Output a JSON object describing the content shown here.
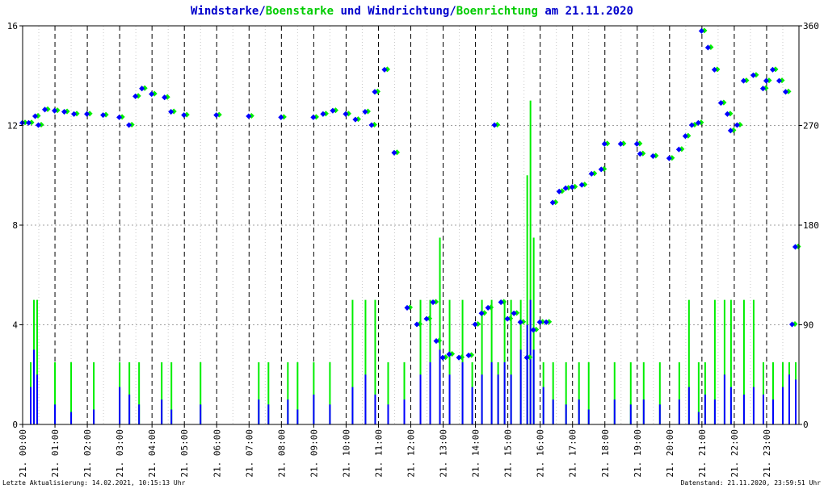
{
  "chart_data": {
    "type": "line",
    "title": {
      "wind_speed": "Windstarke",
      "slash": "/",
      "gust_speed": "Boenstarke",
      "und": " und ",
      "wind_direction": "Windrichtung",
      "gust_direction": "Boenrichtung",
      "date_suffix": " am 21.11.2020"
    },
    "colors": {
      "wind": "#0000ff",
      "gust": "#00ee00",
      "grid": "#a0a0a0",
      "axis": "#000000"
    },
    "y_left": {
      "range": [
        0,
        16
      ],
      "ticks": [
        "0",
        "4",
        "8",
        "12",
        "16"
      ]
    },
    "y_right": {
      "range": [
        0,
        360
      ],
      "ticks": [
        "0",
        "90",
        "180",
        "270",
        "360"
      ]
    },
    "x": {
      "range_hours": [
        0,
        24
      ],
      "ticks": [
        "21. 00:00",
        "21. 01:00",
        "21. 02:00",
        "21. 03:00",
        "21. 04:00",
        "21. 05:00",
        "21. 06:00",
        "21. 07:00",
        "21. 08:00",
        "21. 09:00",
        "21. 10:00",
        "21. 11:00",
        "21. 12:00",
        "21. 13:00",
        "21. 14:00",
        "21. 15:00",
        "21. 16:00",
        "21. 17:00",
        "21. 18:00",
        "21. 19:00",
        "21. 20:00",
        "21. 21:00",
        "21. 22:00",
        "21. 23:00"
      ]
    },
    "direction_series": {
      "name_wind": "Windrichtung",
      "name_gust": "Boenrichtung",
      "points": [
        [
          0.0,
          272
        ],
        [
          0.2,
          272
        ],
        [
          0.4,
          278
        ],
        [
          0.5,
          270
        ],
        [
          0.7,
          284
        ],
        [
          1.0,
          283
        ],
        [
          1.3,
          282
        ],
        [
          1.6,
          280
        ],
        [
          2.0,
          280
        ],
        [
          2.5,
          279
        ],
        [
          3.0,
          277
        ],
        [
          3.3,
          270
        ],
        [
          3.5,
          296
        ],
        [
          3.7,
          303
        ],
        [
          4.0,
          298
        ],
        [
          4.4,
          295
        ],
        [
          4.6,
          282
        ],
        [
          5.0,
          279
        ],
        [
          6.0,
          279
        ],
        [
          7.0,
          278
        ],
        [
          8.0,
          277
        ],
        [
          9.0,
          277
        ],
        [
          9.3,
          280
        ],
        [
          9.6,
          283
        ],
        [
          10.0,
          280
        ],
        [
          10.3,
          275
        ],
        [
          10.6,
          282
        ],
        [
          10.8,
          270
        ],
        [
          10.9,
          300
        ],
        [
          11.2,
          320
        ],
        [
          11.5,
          245
        ],
        [
          11.9,
          105
        ],
        [
          12.2,
          90
        ],
        [
          12.5,
          95
        ],
        [
          12.7,
          110
        ],
        [
          12.8,
          75
        ],
        [
          13.0,
          60
        ],
        [
          13.2,
          63
        ],
        [
          13.5,
          60
        ],
        [
          13.8,
          62
        ],
        [
          14.0,
          90
        ],
        [
          14.2,
          100
        ],
        [
          14.4,
          105
        ],
        [
          14.6,
          270
        ],
        [
          14.8,
          110
        ],
        [
          15.0,
          95
        ],
        [
          15.2,
          100
        ],
        [
          15.4,
          92
        ],
        [
          15.6,
          60
        ],
        [
          15.8,
          85
        ],
        [
          16.0,
          92
        ],
        [
          16.2,
          92
        ],
        [
          16.4,
          200
        ],
        [
          16.6,
          210
        ],
        [
          16.8,
          213
        ],
        [
          17.0,
          214
        ],
        [
          17.3,
          216
        ],
        [
          17.6,
          226
        ],
        [
          17.9,
          230
        ],
        [
          18.0,
          253
        ],
        [
          18.5,
          253
        ],
        [
          19.0,
          253
        ],
        [
          19.1,
          244
        ],
        [
          19.5,
          242
        ],
        [
          20.0,
          240
        ],
        [
          20.3,
          248
        ],
        [
          20.5,
          260
        ],
        [
          20.7,
          270
        ],
        [
          20.9,
          272
        ],
        [
          21.0,
          355
        ],
        [
          21.2,
          340
        ],
        [
          21.4,
          320
        ],
        [
          21.6,
          290
        ],
        [
          21.8,
          280
        ],
        [
          21.9,
          265
        ],
        [
          22.1,
          270
        ],
        [
          22.3,
          310
        ],
        [
          22.6,
          315
        ],
        [
          22.9,
          303
        ],
        [
          23.0,
          310
        ],
        [
          23.2,
          320
        ],
        [
          23.4,
          310
        ],
        [
          23.6,
          300
        ],
        [
          23.8,
          90
        ],
        [
          23.9,
          160
        ]
      ]
    },
    "speed_series": {
      "name_wind": "Windstarke",
      "name_gust": "Boenstarke",
      "points": [
        [
          0.25,
          1.5,
          2.5
        ],
        [
          0.35,
          3.0,
          5.0
        ],
        [
          0.45,
          2.0,
          5.0
        ],
        [
          1.0,
          0.8,
          2.5
        ],
        [
          1.5,
          0.5,
          2.5
        ],
        [
          2.2,
          0.6,
          2.5
        ],
        [
          3.0,
          1.5,
          2.5
        ],
        [
          3.3,
          1.2,
          2.5
        ],
        [
          3.6,
          0.8,
          2.5
        ],
        [
          4.3,
          1.0,
          2.5
        ],
        [
          4.6,
          0.6,
          2.5
        ],
        [
          5.5,
          0.8,
          2.5
        ],
        [
          7.3,
          1.0,
          2.5
        ],
        [
          7.6,
          0.8,
          2.5
        ],
        [
          8.2,
          1.0,
          2.5
        ],
        [
          8.5,
          0.6,
          2.5
        ],
        [
          9.0,
          1.2,
          2.5
        ],
        [
          9.5,
          0.8,
          2.5
        ],
        [
          10.2,
          1.5,
          5.0
        ],
        [
          10.6,
          2.0,
          5.0
        ],
        [
          10.9,
          1.2,
          5.0
        ],
        [
          11.3,
          0.8,
          2.5
        ],
        [
          11.8,
          1.0,
          2.5
        ],
        [
          12.3,
          2.0,
          5.0
        ],
        [
          12.6,
          2.5,
          5.0
        ],
        [
          12.9,
          3.0,
          7.5
        ],
        [
          13.2,
          2.0,
          5.0
        ],
        [
          13.6,
          2.5,
          5.0
        ],
        [
          13.9,
          1.5,
          2.5
        ],
        [
          14.2,
          2.0,
          5.0
        ],
        [
          14.5,
          2.5,
          5.0
        ],
        [
          14.7,
          2.0,
          2.5
        ],
        [
          14.9,
          2.5,
          5.0
        ],
        [
          15.1,
          2.0,
          5.0
        ],
        [
          15.4,
          3.0,
          5.0
        ],
        [
          15.6,
          4.0,
          10.0
        ],
        [
          15.7,
          5.0,
          13.0
        ],
        [
          15.8,
          3.0,
          7.5
        ],
        [
          16.1,
          1.5,
          2.5
        ],
        [
          16.4,
          1.0,
          2.5
        ],
        [
          16.8,
          0.8,
          2.5
        ],
        [
          17.2,
          1.0,
          2.5
        ],
        [
          17.5,
          0.6,
          2.5
        ],
        [
          18.3,
          1.0,
          2.5
        ],
        [
          18.8,
          0.8,
          2.5
        ],
        [
          19.2,
          1.0,
          2.5
        ],
        [
          19.7,
          0.8,
          2.5
        ],
        [
          20.3,
          1.0,
          2.5
        ],
        [
          20.6,
          1.5,
          5.0
        ],
        [
          20.9,
          0.5,
          2.5
        ],
        [
          21.1,
          1.2,
          2.5
        ],
        [
          21.4,
          1.0,
          5.0
        ],
        [
          21.7,
          2.0,
          5.0
        ],
        [
          21.9,
          1.5,
          5.0
        ],
        [
          22.3,
          1.2,
          5.0
        ],
        [
          22.6,
          1.5,
          5.0
        ],
        [
          22.9,
          1.2,
          2.5
        ],
        [
          23.2,
          1.0,
          2.5
        ],
        [
          23.5,
          1.5,
          2.5
        ],
        [
          23.7,
          2.0,
          2.5
        ],
        [
          23.9,
          1.8,
          2.5
        ]
      ]
    }
  },
  "footer": {
    "left": "Letzte Aktualisierung: 14.02.2021, 10:15:13 Uhr",
    "right": "Datenstand: 21.11.2020, 23:59:51 Uhr"
  }
}
